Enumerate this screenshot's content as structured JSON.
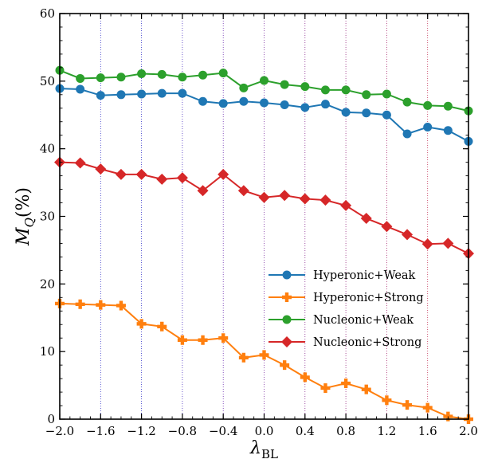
{
  "chart_data": {
    "type": "line",
    "title": "",
    "xlabel": "λ",
    "xlabel_sub": "BL",
    "ylabel": "M",
    "ylabel_sub": "Q",
    "ylabel_suffix": "(%)",
    "xlim": [
      -2.0,
      2.0
    ],
    "ylim": [
      0,
      60
    ],
    "x_ticks": [
      -2.0,
      -1.6,
      -1.2,
      -0.8,
      -0.4,
      0.0,
      0.4,
      0.8,
      1.2,
      1.6,
      2.0
    ],
    "x_tick_labels": [
      "−2.0",
      "−1.6",
      "−1.2",
      "−0.8",
      "−0.4",
      "0.0",
      "0.4",
      "0.8",
      "1.2",
      "1.6",
      "2.0"
    ],
    "y_ticks": [
      0,
      10,
      20,
      30,
      40,
      50,
      60
    ],
    "y_tick_labels": [
      "0",
      "10",
      "20",
      "30",
      "40",
      "50",
      "60"
    ],
    "grid": "vertical dotted lines at major x ticks",
    "legend_position": "center-right",
    "x": [
      -2.0,
      -1.8,
      -1.6,
      -1.4,
      -1.2,
      -1.0,
      -0.8,
      -0.6,
      -0.4,
      -0.2,
      0.0,
      0.2,
      0.4,
      0.6,
      0.8,
      1.0,
      1.2,
      1.4,
      1.6,
      1.8,
      2.0
    ],
    "series": [
      {
        "name": "Hyperonic+Weak",
        "color": "#1f77b4",
        "marker": "circle",
        "values": [
          48.9,
          48.8,
          47.9,
          48.0,
          48.1,
          48.2,
          48.2,
          47.0,
          46.7,
          47.0,
          46.8,
          46.5,
          46.1,
          46.6,
          45.4,
          45.3,
          45.0,
          42.2,
          43.2,
          42.7,
          41.1
        ]
      },
      {
        "name": "Hyperonic+Strong",
        "color": "#ff7f0e",
        "marker": "plus",
        "values": [
          17.1,
          17.0,
          16.9,
          16.8,
          14.1,
          13.7,
          11.7,
          11.7,
          12.0,
          9.1,
          9.5,
          8.0,
          6.2,
          4.6,
          5.3,
          4.4,
          2.8,
          2.1,
          1.7,
          0.4,
          0.0
        ]
      },
      {
        "name": "Nucleonic+Weak",
        "color": "#2ca02c",
        "marker": "circle",
        "values": [
          51.6,
          50.4,
          50.5,
          50.6,
          51.1,
          51.0,
          50.6,
          50.9,
          51.2,
          49.0,
          50.1,
          49.5,
          49.2,
          48.7,
          48.7,
          48.0,
          48.1,
          46.9,
          46.4,
          46.3,
          45.6
        ]
      },
      {
        "name": "Nucleonic+Strong",
        "color": "#d62728",
        "marker": "diamond",
        "values": [
          38.0,
          37.9,
          37.0,
          36.2,
          36.2,
          35.5,
          35.7,
          33.8,
          36.2,
          33.8,
          32.8,
          33.1,
          32.6,
          32.4,
          31.6,
          29.7,
          28.5,
          27.3,
          25.9,
          26.0,
          24.5
        ]
      }
    ]
  }
}
